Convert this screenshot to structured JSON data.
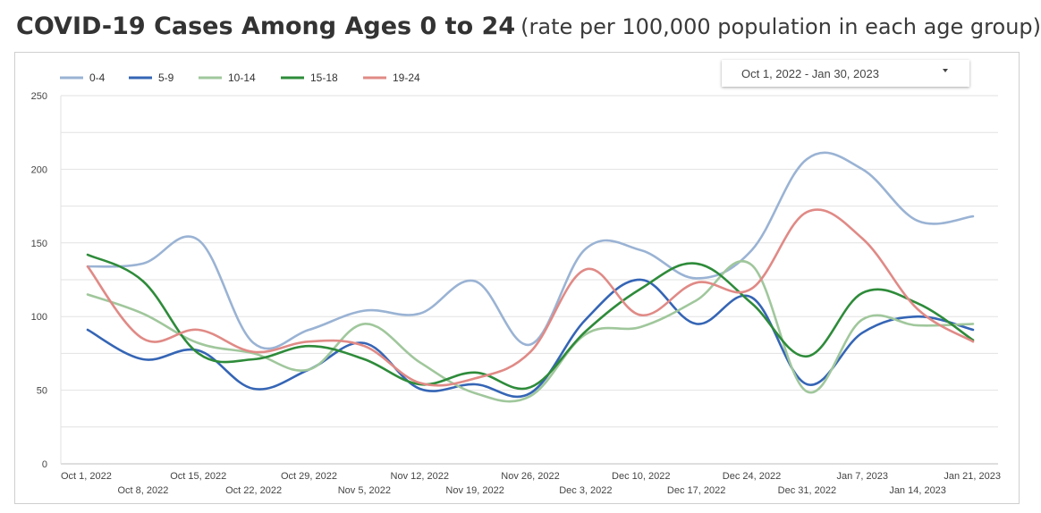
{
  "header": {
    "title": "COVID-19 Cases Among Ages 0 to 24",
    "subtitle": "(rate per 100,000 population in each age group)"
  },
  "date_filter": {
    "value": "Oct 1, 2022 - Jan 30, 2023"
  },
  "colors": {
    "0-4": "#9ab3d4",
    "5-9": "#3565b5",
    "10-14": "#a0c79c",
    "15-18": "#2e8b3a",
    "19-24": "#e08a86",
    "grid": "#e2e2e2"
  },
  "chart_data": {
    "type": "line",
    "title": "",
    "xlabel": "",
    "ylabel": "",
    "ylim": [
      0,
      250
    ],
    "yticks": [
      0,
      50,
      100,
      150,
      200,
      250
    ],
    "grid": true,
    "legend_position": "top-left",
    "x": [
      "Oct 1, 2022",
      "Oct 8, 2022",
      "Oct 15, 2022",
      "Oct 22, 2022",
      "Oct 29, 2022",
      "Nov 5, 2022",
      "Nov 12, 2022",
      "Nov 19, 2022",
      "Nov 26, 2022",
      "Dec 3, 2022",
      "Dec 10, 2022",
      "Dec 17, 2022",
      "Dec 24, 2022",
      "Dec 31, 2022",
      "Jan 7, 2023",
      "Jan 14, 2023",
      "Jan 21, 2023"
    ],
    "series": [
      {
        "name": "0-4",
        "color": "#9ab3d4",
        "values": [
          134,
          136,
          152,
          82,
          91,
          104,
          102,
          124,
          81,
          146,
          145,
          126,
          145,
          207,
          200,
          165,
          168
        ]
      },
      {
        "name": "5-9",
        "color": "#3565b5",
        "values": [
          91,
          71,
          77,
          51,
          64,
          82,
          51,
          54,
          48,
          98,
          125,
          95,
          113,
          54,
          89,
          100,
          91
        ]
      },
      {
        "name": "10-14",
        "color": "#a0c79c",
        "values": [
          115,
          102,
          82,
          75,
          64,
          95,
          69,
          48,
          46,
          88,
          93,
          111,
          135,
          49,
          98,
          94,
          95
        ]
      },
      {
        "name": "15-18",
        "color": "#2e8b3a",
        "values": [
          142,
          124,
          75,
          71,
          80,
          71,
          54,
          62,
          52,
          90,
          119,
          136,
          109,
          73,
          116,
          109,
          84
        ]
      },
      {
        "name": "19-24",
        "color": "#e08a86",
        "values": [
          134,
          85,
          91,
          76,
          83,
          80,
          55,
          58,
          76,
          132,
          101,
          123,
          119,
          171,
          153,
          105,
          83
        ]
      }
    ]
  }
}
